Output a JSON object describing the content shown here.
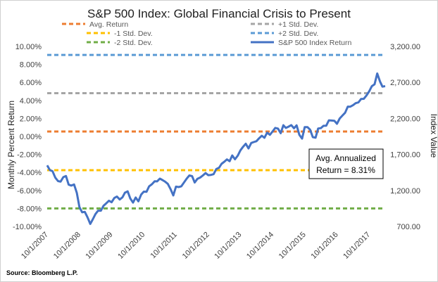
{
  "chart_data": {
    "type": "line",
    "title": "S&P 500 Index: Global Financial Crisis to Present",
    "ylabel_left": "Monthly Percent Return",
    "ylabel_right": "Index Value",
    "source": "Source: Bloomberg L.P.",
    "annotation_line1": "Avg. Annualized",
    "annotation_line2": "Return = 8.31%",
    "y_left_range": [
      -10,
      10
    ],
    "y_right_range": [
      700,
      3200
    ],
    "x_range": [
      "2007-10-01",
      "2018-04-01"
    ],
    "y_left_ticks": [
      "-10.00%",
      "-8.00%",
      "-6.00%",
      "-4.00%",
      "-2.00%",
      "0.00%",
      "2.00%",
      "4.00%",
      "6.00%",
      "8.00%",
      "10.00%"
    ],
    "y_right_ticks": [
      "700.00",
      "1,200.00",
      "1,700.00",
      "2,200.00",
      "2,700.00",
      "3,200.00"
    ],
    "x_ticks": [
      "10/1/2007",
      "10/1/2008",
      "10/1/2009",
      "10/1/2010",
      "10/1/2011",
      "10/1/2012",
      "10/1/2013",
      "10/1/2014",
      "10/1/2015",
      "10/1/2016",
      "10/1/2017"
    ],
    "grid": false,
    "legend_position": "top",
    "reference_lines": [
      {
        "name": "Avg. Return",
        "value": 0.55,
        "color": "#ED7D31"
      },
      {
        "name": "+1 Std. Dev.",
        "value": 4.8,
        "color": "#A5A5A5"
      },
      {
        "name": "-1 Std. Dev.",
        "value": -3.75,
        "color": "#FFC000"
      },
      {
        "name": "+2 Std. Dev.",
        "value": 9.05,
        "color": "#5B9BD5"
      },
      {
        "name": "-2 Std. Dev.",
        "value": -8.0,
        "color": "#70AD47"
      }
    ],
    "series": [
      {
        "name": "S&P 500 Index Return",
        "color": "#4472C4",
        "axis": "right",
        "x": [
          "2007-10-01",
          "2007-11-01",
          "2007-12-01",
          "2008-01-01",
          "2008-02-01",
          "2008-03-01",
          "2008-04-01",
          "2008-05-01",
          "2008-06-01",
          "2008-07-01",
          "2008-08-01",
          "2008-09-01",
          "2008-10-01",
          "2008-11-01",
          "2008-12-01",
          "2009-01-01",
          "2009-02-01",
          "2009-03-01",
          "2009-04-01",
          "2009-05-01",
          "2009-06-01",
          "2009-07-01",
          "2009-08-01",
          "2009-09-01",
          "2009-10-01",
          "2009-11-01",
          "2009-12-01",
          "2010-01-01",
          "2010-02-01",
          "2010-03-01",
          "2010-04-01",
          "2010-05-01",
          "2010-06-01",
          "2010-07-01",
          "2010-08-01",
          "2010-09-01",
          "2010-10-01",
          "2010-11-01",
          "2010-12-01",
          "2011-01-01",
          "2011-02-01",
          "2011-03-01",
          "2011-04-01",
          "2011-05-01",
          "2011-06-01",
          "2011-07-01",
          "2011-08-01",
          "2011-09-01",
          "2011-10-01",
          "2011-11-01",
          "2011-12-01",
          "2012-01-01",
          "2012-02-01",
          "2012-03-01",
          "2012-04-01",
          "2012-05-01",
          "2012-06-01",
          "2012-07-01",
          "2012-08-01",
          "2012-09-01",
          "2012-10-01",
          "2012-11-01",
          "2012-12-01",
          "2013-01-01",
          "2013-02-01",
          "2013-03-01",
          "2013-04-01",
          "2013-05-01",
          "2013-06-01",
          "2013-07-01",
          "2013-08-01",
          "2013-09-01",
          "2013-10-01",
          "2013-11-01",
          "2013-12-01",
          "2014-01-01",
          "2014-02-01",
          "2014-03-01",
          "2014-04-01",
          "2014-05-01",
          "2014-06-01",
          "2014-07-01",
          "2014-08-01",
          "2014-09-01",
          "2014-10-01",
          "2014-11-01",
          "2014-12-01",
          "2015-01-01",
          "2015-02-01",
          "2015-03-01",
          "2015-04-01",
          "2015-05-01",
          "2015-06-01",
          "2015-07-01",
          "2015-08-01",
          "2015-09-01",
          "2015-10-01",
          "2015-11-01",
          "2015-12-01",
          "2016-01-01",
          "2016-02-01",
          "2016-03-01",
          "2016-04-01",
          "2016-05-01",
          "2016-06-01",
          "2016-07-01",
          "2016-08-01",
          "2016-09-01",
          "2016-10-01",
          "2016-11-01",
          "2016-12-01",
          "2017-01-01",
          "2017-02-01",
          "2017-03-01",
          "2017-04-01",
          "2017-05-01",
          "2017-06-01",
          "2017-07-01",
          "2017-08-01",
          "2017-09-01",
          "2017-10-01",
          "2017-11-01",
          "2017-12-01",
          "2018-01-01",
          "2018-02-01",
          "2018-03-01",
          "2018-04-01"
        ],
        "values": [
          1549,
          1481,
          1468,
          1378,
          1330,
          1322,
          1385,
          1400,
          1280,
          1267,
          1283,
          1166,
          969,
          896,
          903,
          826,
          735,
          798,
          873,
          919,
          919,
          987,
          1021,
          1057,
          1036,
          1096,
          1115,
          1074,
          1104,
          1169,
          1187,
          1089,
          1031,
          1102,
          1049,
          1141,
          1183,
          1181,
          1258,
          1286,
          1327,
          1326,
          1364,
          1345,
          1321,
          1292,
          1219,
          1131,
          1253,
          1247,
          1258,
          1312,
          1366,
          1408,
          1398,
          1310,
          1362,
          1379,
          1407,
          1441,
          1412,
          1416,
          1426,
          1498,
          1515,
          1569,
          1598,
          1631,
          1606,
          1686,
          1633,
          1682,
          1757,
          1806,
          1848,
          1783,
          1859,
          1872,
          1884,
          1924,
          1960,
          1931,
          2003,
          1972,
          2018,
          2068,
          2059,
          1995,
          2105,
          2068,
          2086,
          2107,
          2063,
          2104,
          1972,
          1920,
          2079,
          2080,
          2044,
          1940,
          1932,
          2060,
          2065,
          2097,
          2099,
          2174,
          2171,
          2168,
          2126,
          2199,
          2239,
          2279,
          2364,
          2363,
          2384,
          2412,
          2423,
          2470,
          2472,
          2519,
          2575,
          2648,
          2674,
          2824,
          2714,
          2641,
          2648
        ]
      }
    ]
  }
}
